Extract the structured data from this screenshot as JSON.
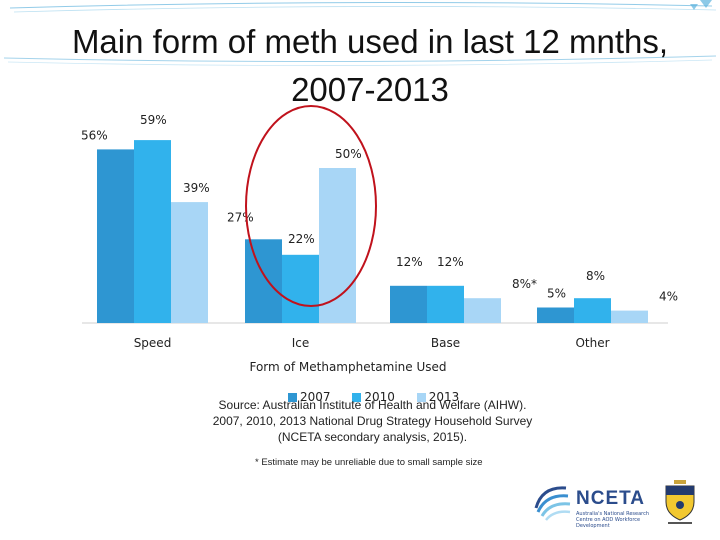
{
  "title": "Main form of meth used in last 12 mnths, 2007-2013",
  "colors": {
    "s2007": "#2e96d2",
    "s2010": "#31b2ec",
    "s2013": "#a8d6f6",
    "highlight": "#c0121c"
  },
  "chart_data": {
    "type": "bar",
    "title": "Main form of meth used in last 12 mnths, 2007-2013",
    "xlabel": "Form of Methamphetamine Used",
    "ylabel": "",
    "categories": [
      "Speed",
      "Ice",
      "Base",
      "Other"
    ],
    "series": [
      {
        "name": "2007",
        "values": [
          56,
          27,
          12,
          5
        ],
        "labels": [
          "56%",
          "27%",
          "12%",
          "5%"
        ]
      },
      {
        "name": "2010",
        "values": [
          59,
          22,
          12,
          8
        ],
        "labels": [
          "59%",
          "22%",
          "12%",
          "8%"
        ]
      },
      {
        "name": "2013",
        "values": [
          39,
          50,
          8,
          4
        ],
        "labels": [
          "39%",
          "50%",
          "8%*",
          "4%"
        ]
      }
    ],
    "ylim": [
      0,
      60
    ],
    "grid": false,
    "legend_position": "bottom",
    "annotation": "Ice bars circled"
  },
  "source": {
    "line1": "Source: Australian Institute of Health and Welfare (AIHW).",
    "line2": "2007, 2010, 2013 National Drug Strategy Household Survey",
    "line3": "(NCETA secondary analysis, 2015)."
  },
  "footnote": "* Estimate may be unreliable due to small sample size",
  "logos": {
    "nceta_name": "NCETA",
    "nceta_sub": "Australia's National Research Centre on AOD Workforce Development",
    "university_crest": "flinders-university-crest"
  }
}
